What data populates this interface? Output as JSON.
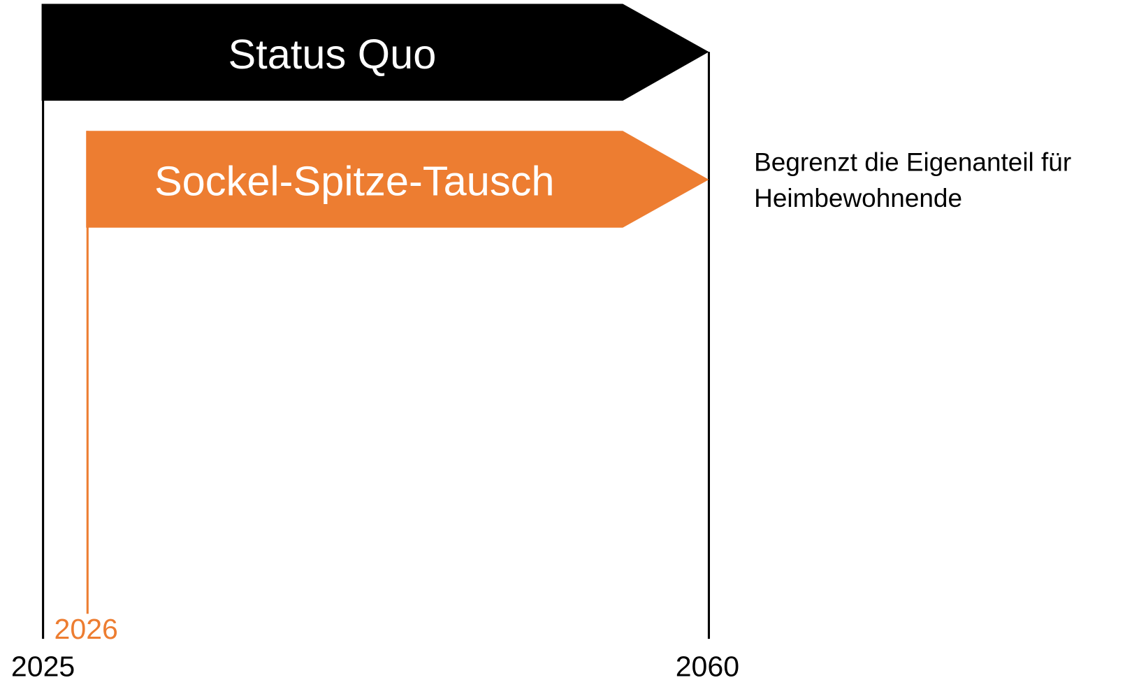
{
  "timeline": {
    "bars": [
      {
        "label": "Status Quo"
      },
      {
        "label": "Sockel-Spitze-Tausch"
      }
    ],
    "years": {
      "start": "2025",
      "reform_start": "2026",
      "end": "2060"
    },
    "note": {
      "lines": [
        "Begrenzt die Eigenanteil für",
        "Heimbewohnende"
      ]
    }
  }
}
